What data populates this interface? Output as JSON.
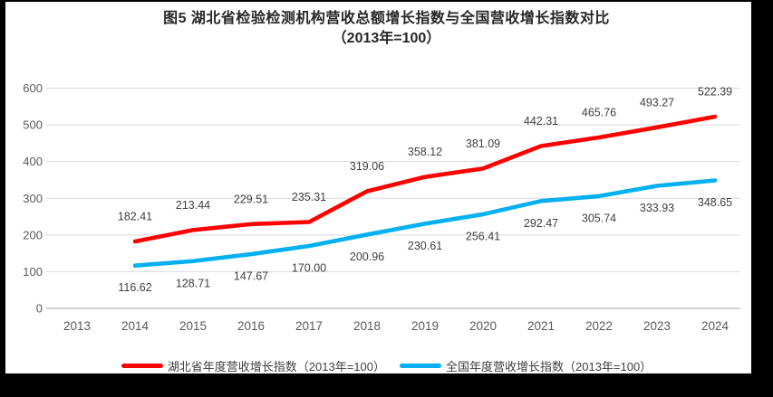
{
  "figure_label": "图5",
  "chart_data": {
    "type": "line",
    "title": "图5 湖北省检验检测机构营收总额增长指数与全国营收增长指数对比",
    "subtitle": "（2013年=100）",
    "xlabel": "",
    "ylabel": "",
    "x_ticks": [
      "2013",
      "2014",
      "2015",
      "2016",
      "2017",
      "2018",
      "2019",
      "2020",
      "2021",
      "2022",
      "2023",
      "2024"
    ],
    "y_ticks": [
      "0",
      "100",
      "200",
      "300",
      "400",
      "500",
      "600"
    ],
    "ylim": [
      0,
      600
    ],
    "ytick_step": 100,
    "grid": true,
    "legend_position": "bottom",
    "series": [
      {
        "name": "湖北省年度营收增长指数（2013年=100）",
        "color": "#ff0000",
        "start_year": 2014,
        "values": [
          182.41,
          213.44,
          229.51,
          235.31,
          319.06,
          358.12,
          381.09,
          442.31,
          465.76,
          493.27,
          522.39
        ],
        "labels": [
          "182.41",
          "213.44",
          "229.51",
          "235.31",
          "319.06",
          "358.12",
          "381.09",
          "442.31",
          "465.76",
          "493.27",
          "522.39"
        ],
        "label_position": "above"
      },
      {
        "name": "全国年度营收增长指数（2013年=100）",
        "color": "#00b0f0",
        "start_year": 2014,
        "values": [
          116.62,
          128.71,
          147.67,
          170.0,
          200.96,
          230.61,
          256.41,
          292.47,
          305.74,
          333.93,
          348.65
        ],
        "labels": [
          "116.62",
          "128.71",
          "147.67",
          "170.00",
          "200.96",
          "230.61",
          "256.41",
          "292.47",
          "305.74",
          "333.93",
          "348.65"
        ],
        "label_position": "below"
      }
    ],
    "colors": {
      "grid_line": "#d9d9d9",
      "axis_line": "#b3b3b3",
      "tick_label": "#595959",
      "data_label": "#404040",
      "title": "#262626",
      "legend_text": "#404040",
      "background": "#ffffff",
      "frame": "#000000"
    }
  }
}
